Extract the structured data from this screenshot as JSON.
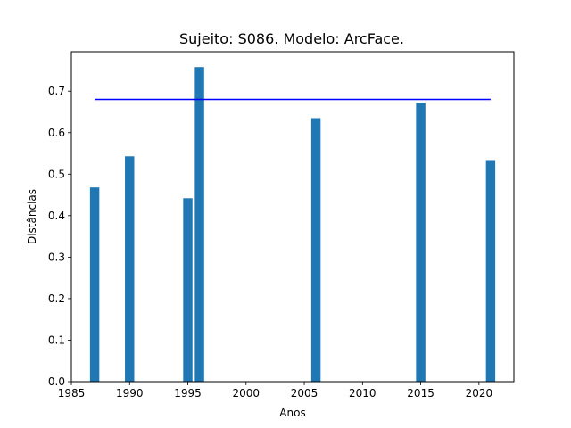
{
  "chart_data": {
    "type": "bar",
    "title": "Sujeito: S086. Modelo: ArcFace.",
    "xlabel": "Anos",
    "ylabel": "Distâncias",
    "x": [
      1987,
      1990,
      1995,
      1996,
      2006,
      2015,
      2021
    ],
    "values": [
      0.468,
      0.543,
      0.442,
      0.758,
      0.635,
      0.672,
      0.534
    ],
    "bar_color": "#1f77b4",
    "threshold": {
      "value": 0.68,
      "x_start": 1987,
      "x_end": 2021,
      "color": "#0000ff"
    },
    "xlim": [
      1985,
      2023
    ],
    "ylim": [
      0,
      0.795
    ],
    "xticks": [
      1985,
      1990,
      1995,
      2000,
      2005,
      2010,
      2015,
      2020
    ],
    "xtick_labels": [
      "1985",
      "1990",
      "1995",
      "2000",
      "2005",
      "2010",
      "2015",
      "2020"
    ],
    "yticks": [
      0,
      0.1,
      0.2,
      0.3,
      0.4,
      0.5,
      0.6,
      0.7
    ],
    "ytick_labels": [
      "0.0",
      "0.1",
      "0.2",
      "0.3",
      "0.4",
      "0.5",
      "0.6",
      "0.7"
    ],
    "grid": false,
    "legend": false
  }
}
